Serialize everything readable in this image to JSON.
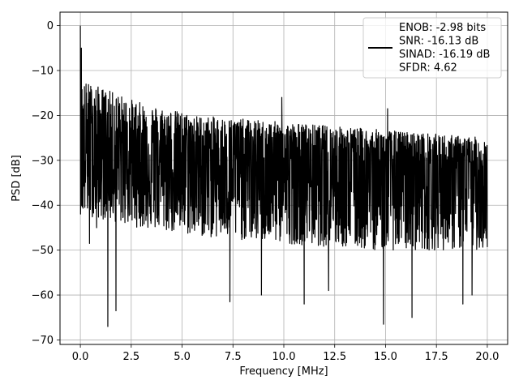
{
  "chart_data": {
    "type": "line",
    "title": "",
    "xlabel": "Frequency [MHz]",
    "ylabel": "PSD [dB]",
    "xlim": [
      -1.0,
      21.0
    ],
    "ylim": [
      -71,
      3
    ],
    "xticks": [
      0.0,
      2.5,
      5.0,
      7.5,
      10.0,
      12.5,
      15.0,
      17.5,
      20.0
    ],
    "xtick_labels": [
      "0.0",
      "2.5",
      "5.0",
      "7.5",
      "10.0",
      "12.5",
      "15.0",
      "17.5",
      "20.0"
    ],
    "yticks": [
      0,
      -10,
      -20,
      -30,
      -40,
      -50,
      -60,
      -70
    ],
    "ytick_labels": [
      "0",
      "−10",
      "−20",
      "−30",
      "−40",
      "−50",
      "−60",
      "−70"
    ],
    "grid": true,
    "legend_position": "top-right",
    "series": [
      {
        "name": "ENOB: -2.98 bits\nSNR: -16.13 dB\nSINAD: -16.19 dB\nSFDR: 4.62",
        "color": "#000000",
        "x_range": [
          0.0,
          20.0
        ],
        "points_count": 2000,
        "peak": {
          "x": 0.0,
          "y": 0.0
        },
        "upper_envelope_db": [
          -12,
          -17,
          -20,
          -21,
          -22,
          -23,
          -24,
          -25
        ],
        "median_db": [
          -28,
          -30,
          -31,
          -32,
          -32,
          -33,
          -33,
          -34
        ],
        "lower_envelope_db": [
          -42,
          -45,
          -47,
          -48,
          -49,
          -50,
          -50,
          -50
        ],
        "notable_dips": [
          {
            "x": 0.45,
            "y": -48.5
          },
          {
            "x": 0.8,
            "y": -45
          },
          {
            "x": 1.35,
            "y": -67
          },
          {
            "x": 1.75,
            "y": -63.5
          },
          {
            "x": 7.35,
            "y": -61.5
          },
          {
            "x": 8.9,
            "y": -60
          },
          {
            "x": 11.0,
            "y": -62
          },
          {
            "x": 12.2,
            "y": -59
          },
          {
            "x": 14.9,
            "y": -66.5
          },
          {
            "x": 16.3,
            "y": -65
          },
          {
            "x": 18.8,
            "y": -62
          },
          {
            "x": 19.25,
            "y": -60
          }
        ],
        "notable_peaks": [
          {
            "x": 0.05,
            "y": -5
          },
          {
            "x": 0.3,
            "y": -15
          },
          {
            "x": 9.9,
            "y": -16
          },
          {
            "x": 15.1,
            "y": -18.5
          }
        ]
      }
    ]
  }
}
